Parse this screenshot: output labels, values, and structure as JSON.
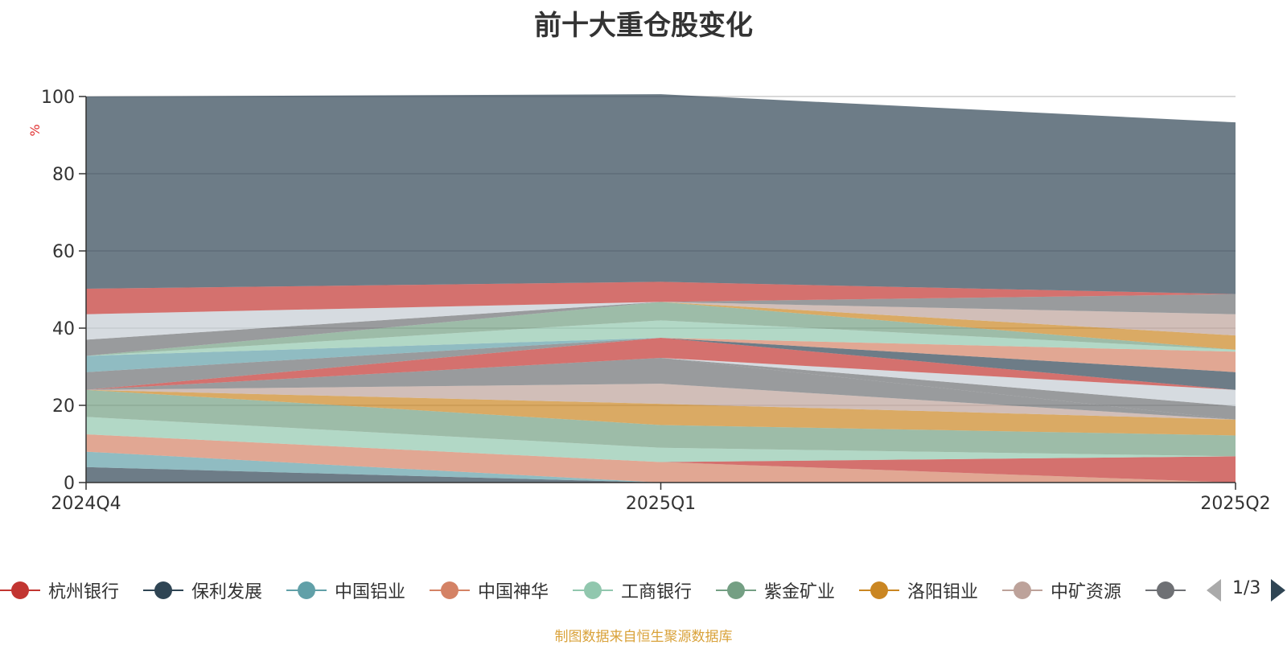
{
  "title": "前十大重仓股变化",
  "source_note": "制图数据来自恒生聚源数据库",
  "pager": {
    "text": "1/3"
  },
  "legend_items": [
    {
      "label": "杭州银行",
      "color": "#c23531"
    },
    {
      "label": "保利发展",
      "color": "#2f4554"
    },
    {
      "label": "中国铝业",
      "color": "#61a0a8"
    },
    {
      "label": "中国神华",
      "color": "#d48265"
    },
    {
      "label": "工商银行",
      "color": "#91c7ae"
    },
    {
      "label": "紫金矿业",
      "color": "#749f83"
    },
    {
      "label": "洛阳钼业",
      "color": "#ca8622"
    },
    {
      "label": "中矿资源",
      "color": "#bda29a"
    },
    {
      "label": "",
      "color": "#6e7074"
    }
  ],
  "chart_data": {
    "type": "area",
    "stacked": true,
    "x": [
      "2024Q4",
      "2025Q1",
      "2025Q2"
    ],
    "ylabel": "%",
    "ylim": [
      0,
      100
    ],
    "yticks": [
      0,
      20,
      40,
      60,
      80,
      100
    ],
    "grid": true,
    "legend_position": "bottom",
    "layers": [
      {
        "color": "#2f4554",
        "values": [
          4.0,
          0.0,
          0.0
        ]
      },
      {
        "color": "#61a0a8",
        "values": [
          4.0,
          0.0,
          0.0
        ]
      },
      {
        "color": "#d48265",
        "values": [
          4.5,
          5.3,
          0.0
        ]
      },
      {
        "color": "#c23531",
        "values": [
          0.0,
          0.0,
          6.8
        ]
      },
      {
        "color": "#91c7ae",
        "values": [
          4.5,
          3.7,
          0.0
        ]
      },
      {
        "color": "#749f83",
        "values": [
          7.0,
          5.9,
          5.4
        ]
      },
      {
        "color": "#ca8622",
        "values": [
          0.0,
          5.5,
          4.1
        ]
      },
      {
        "color": "#bda29a",
        "values": [
          0.0,
          5.2,
          0.0
        ]
      },
      {
        "color": "#6e7074",
        "values": [
          0.0,
          6.7,
          0.0
        ]
      },
      {
        "color": "#6e7074",
        "values": [
          0.0,
          0.0,
          3.5
        ]
      },
      {
        "color": "#c4ccd3",
        "values": [
          0.0,
          0.0,
          4.2
        ]
      },
      {
        "color": "#c23531",
        "values": [
          0.0,
          5.2,
          0.0
        ]
      },
      {
        "color": "#2f4554",
        "values": [
          0.0,
          0.0,
          4.6
        ]
      },
      {
        "color": "#6e7074",
        "values": [
          4.6,
          0.0,
          0.0
        ]
      },
      {
        "color": "#c23531",
        "values": [
          0.0,
          0.0,
          0.0
        ]
      },
      {
        "color": "#d48265",
        "values": [
          0.0,
          0.0,
          5.3
        ]
      },
      {
        "color": "#61a0a8",
        "values": [
          4.2,
          0.0,
          0.0
        ]
      },
      {
        "color": "#91c7ae",
        "values": [
          0.0,
          4.5,
          0.5
        ]
      },
      {
        "color": "#749f83",
        "values": [
          0.0,
          4.8,
          0.0
        ]
      },
      {
        "color": "#ca8622",
        "values": [
          0.0,
          0.0,
          3.7
        ]
      },
      {
        "color": "#bda29a",
        "values": [
          0.0,
          0.0,
          5.5
        ]
      },
      {
        "color": "#6e7074",
        "values": [
          4.2,
          0.0,
          5.2
        ]
      },
      {
        "color": "#c4ccd3",
        "values": [
          6.6,
          0.0,
          0.0
        ]
      },
      {
        "color": "#c23531",
        "values": [
          6.6,
          5.2,
          0.0
        ]
      },
      {
        "color": "#2f4554",
        "values": [
          49.8,
          48.6,
          44.5
        ]
      }
    ]
  }
}
